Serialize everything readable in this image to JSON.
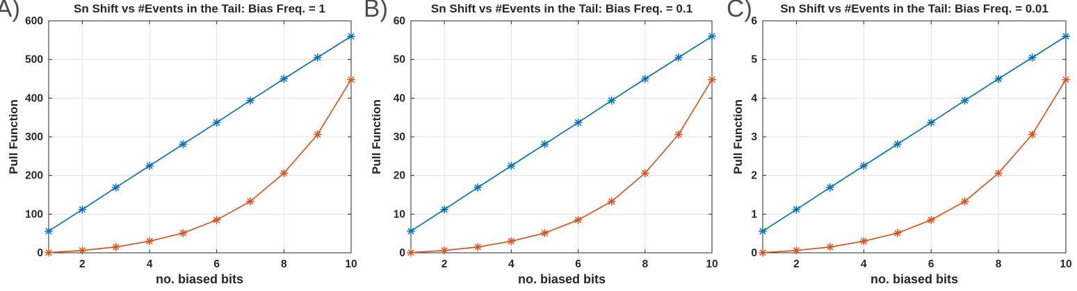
{
  "colors": {
    "axis_and_text": "#262626",
    "grid": "#e0e0e0",
    "panel_label": "#4d4d4d",
    "series_blue": "#0072BD",
    "series_orange": "#D95319"
  },
  "chart_data": [
    {
      "type": "line",
      "panel_label": "A)",
      "title": "Sn Shift vs #Events in the Tail: Bias Freq. = 1",
      "xlabel": "no. biased bits",
      "ylabel": "Pull Function",
      "x": [
        1,
        2,
        3,
        4,
        5,
        6,
        7,
        8,
        9,
        10
      ],
      "xlim": [
        1,
        10
      ],
      "ylim": [
        0,
        600
      ],
      "xticks": [
        2,
        4,
        6,
        8,
        10
      ],
      "yticks": [
        0,
        100,
        200,
        300,
        400,
        500,
        600
      ],
      "grid": true,
      "legend_shown": false,
      "series": [
        {
          "name": "blue-series",
          "color": "#0072BD",
          "marker": "asterisk",
          "values": [
            56,
            112,
            169,
            225,
            281,
            337,
            394,
            450,
            505,
            560
          ]
        },
        {
          "name": "orange-series",
          "color": "#D95319",
          "marker": "asterisk",
          "values": [
            0.5,
            6,
            15,
            30,
            51,
            85,
            133,
            206,
            306,
            448
          ]
        }
      ]
    },
    {
      "type": "line",
      "panel_label": "B)",
      "title": "Sn Shift vs #Events in the Tail: Bias Freq. = 0.1",
      "xlabel": "no. biased bits",
      "ylabel": "Pull Function",
      "x": [
        1,
        2,
        3,
        4,
        5,
        6,
        7,
        8,
        9,
        10
      ],
      "xlim": [
        1,
        10
      ],
      "ylim": [
        0,
        60
      ],
      "xticks": [
        2,
        4,
        6,
        8,
        10
      ],
      "yticks": [
        0,
        10,
        20,
        30,
        40,
        50,
        60
      ],
      "grid": true,
      "legend_shown": false,
      "series": [
        {
          "name": "blue-series",
          "color": "#0072BD",
          "marker": "asterisk",
          "values": [
            5.6,
            11.2,
            16.9,
            22.5,
            28.1,
            33.7,
            39.4,
            45,
            50.5,
            56
          ]
        },
        {
          "name": "orange-series",
          "color": "#D95319",
          "marker": "asterisk",
          "values": [
            0.05,
            0.6,
            1.5,
            3,
            5.1,
            8.5,
            13.3,
            20.6,
            30.6,
            44.8
          ]
        }
      ]
    },
    {
      "type": "line",
      "panel_label": "C)",
      "title": "Sn Shift vs #Events in the Tail: Bias Freq. = 0.01",
      "xlabel": "no. biased bits",
      "ylabel": "Pull Function",
      "x": [
        1,
        2,
        3,
        4,
        5,
        6,
        7,
        8,
        9,
        10
      ],
      "xlim": [
        1,
        10
      ],
      "ylim": [
        0,
        6
      ],
      "xticks": [
        2,
        4,
        6,
        8,
        10
      ],
      "yticks": [
        0,
        1,
        2,
        3,
        4,
        5,
        6
      ],
      "grid": true,
      "legend_shown": false,
      "series": [
        {
          "name": "blue-series",
          "color": "#0072BD",
          "marker": "asterisk",
          "values": [
            0.56,
            1.12,
            1.69,
            2.25,
            2.81,
            3.37,
            3.94,
            4.5,
            5.05,
            5.6
          ]
        },
        {
          "name": "orange-series",
          "color": "#D95319",
          "marker": "asterisk",
          "values": [
            0.005,
            0.06,
            0.15,
            0.3,
            0.51,
            0.85,
            1.33,
            2.06,
            3.06,
            4.48
          ]
        }
      ]
    }
  ]
}
